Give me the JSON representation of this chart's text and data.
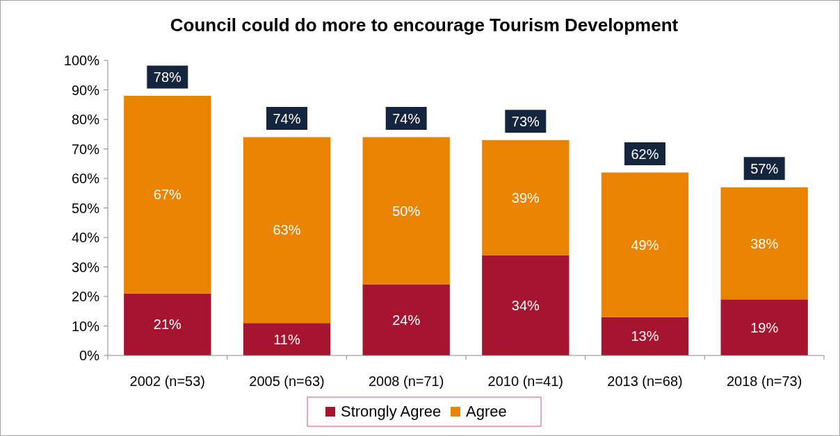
{
  "chart_data": {
    "type": "bar",
    "title": "Council could do more to encourage Tourism Development",
    "stacked": true,
    "categories": [
      "2002 (n=53)",
      "2005 (n=63)",
      "2008 (n=71)",
      "2010 (n=41)",
      "2013 (n=68)",
      "2018 (n=73)"
    ],
    "series": [
      {
        "name": "Strongly Agree",
        "color": "#a5152f",
        "values": [
          21,
          11,
          24,
          34,
          13,
          19
        ],
        "value_labels": [
          "21%",
          "11%",
          "24%",
          "34%",
          "13%",
          "19%"
        ]
      },
      {
        "name": "Agree",
        "color": "#e98300",
        "values": [
          67,
          63,
          50,
          39,
          49,
          38
        ],
        "value_labels": [
          "67%",
          "63%",
          "50%",
          "39%",
          "49%",
          "38%"
        ]
      }
    ],
    "annotations": [
      {
        "text": "78%",
        "x": "2002 (n=53)",
        "y": 88
      },
      {
        "text": "74%",
        "x": "2005 (n=63)",
        "y": 74
      },
      {
        "text": "74%",
        "x": "2008 (n=71)",
        "y": 74
      },
      {
        "text": "73%",
        "x": "2010 (n=41)",
        "y": 73
      },
      {
        "text": "62%",
        "x": "2013 (n=68)",
        "y": 62
      },
      {
        "text": "57%",
        "x": "2018 (n=73)",
        "y": 57
      }
    ],
    "ylim": [
      0,
      100
    ],
    "yticks": [
      {
        "value": 0,
        "label": "0%"
      },
      {
        "value": 10,
        "label": "10%"
      },
      {
        "value": 20,
        "label": "20%"
      },
      {
        "value": 30,
        "label": "30%"
      },
      {
        "value": 40,
        "label": "40%"
      },
      {
        "value": 50,
        "label": "50%"
      },
      {
        "value": 60,
        "label": "60%"
      },
      {
        "value": 70,
        "label": "70%"
      },
      {
        "value": 80,
        "label": "80%"
      },
      {
        "value": 90,
        "label": "90%"
      },
      {
        "value": 100,
        "label": "100%"
      }
    ],
    "grid": false,
    "legend": "bottom"
  }
}
